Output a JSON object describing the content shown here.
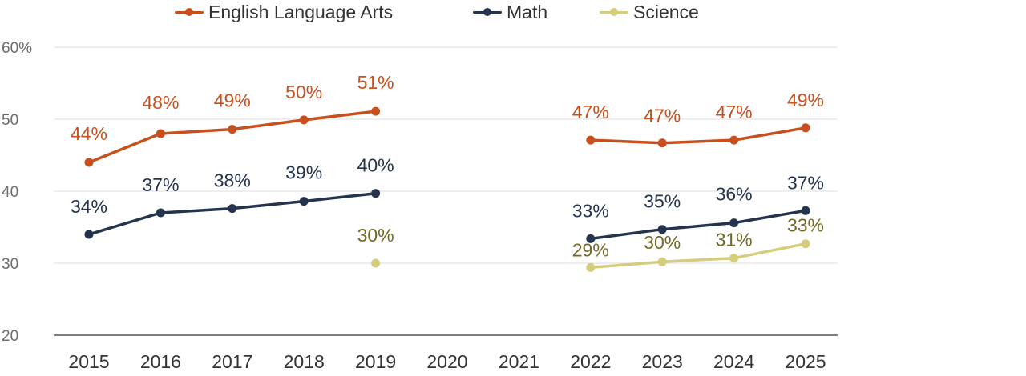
{
  "chart_data": {
    "type": "line",
    "categories": [
      "2015",
      "2016",
      "2017",
      "2018",
      "2019",
      "2020",
      "2021",
      "2022",
      "2023",
      "2024",
      "2025"
    ],
    "ylim": [
      20,
      60
    ],
    "yticks": [
      20,
      30,
      40,
      50,
      60
    ],
    "ytick_labels": [
      "20",
      "30",
      "40",
      "50",
      "60%"
    ],
    "grid": true,
    "legend_position": "top",
    "series": [
      {
        "name": "English Language Arts",
        "color": "#c8501e",
        "label_color": "#c8501e",
        "values": [
          44,
          48,
          48.6,
          49.9,
          51.1,
          null,
          null,
          47.1,
          46.7,
          47.1,
          48.8
        ],
        "labels": [
          "44%",
          "48%",
          "49%",
          "50%",
          "51%",
          null,
          null,
          "47%",
          "47%",
          "47%",
          "49%"
        ]
      },
      {
        "name": "Math",
        "color": "#24344d",
        "label_color": "#24344d",
        "values": [
          34,
          37,
          37.6,
          38.6,
          39.7,
          null,
          null,
          33.4,
          34.7,
          35.6,
          37.3
        ],
        "labels": [
          "34%",
          "37%",
          "38%",
          "39%",
          "40%",
          null,
          null,
          "33%",
          "35%",
          "36%",
          "37%"
        ]
      },
      {
        "name": "Science",
        "color": "#d4cd7c",
        "label_color": "#6e6b26",
        "values": [
          null,
          null,
          null,
          null,
          30,
          null,
          null,
          29.4,
          30.2,
          30.7,
          32.7
        ],
        "labels": [
          null,
          null,
          null,
          null,
          "30%",
          null,
          null,
          "29%",
          "30%",
          "31%",
          "33%"
        ]
      }
    ]
  }
}
